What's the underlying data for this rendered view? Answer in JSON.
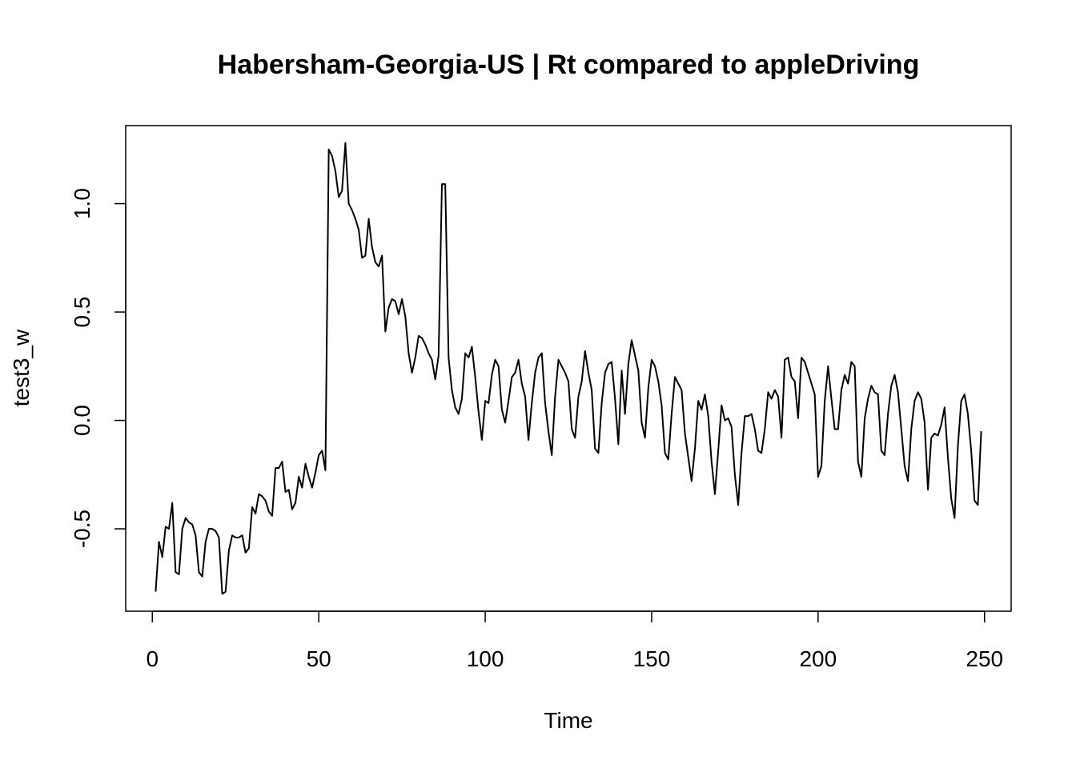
{
  "chart_data": {
    "type": "line",
    "title": "Habersham-Georgia-US | Rt compared to appleDriving",
    "xlabel": "Time",
    "ylabel": "test3_w",
    "xlim": [
      -8,
      258
    ],
    "ylim": [
      -0.88,
      1.36
    ],
    "x_ticks": [
      0,
      50,
      100,
      150,
      200,
      250
    ],
    "x_tick_labels": [
      "0",
      "50",
      "100",
      "150",
      "200",
      "250"
    ],
    "y_ticks": [
      -0.5,
      0.0,
      0.5,
      1.0
    ],
    "y_tick_labels": [
      "-0.5",
      "0.0",
      "0.5",
      "1.0"
    ],
    "grid": false,
    "legend": "none",
    "line_color": "#000000",
    "series": [
      {
        "x_start": 1,
        "values": [
          -0.79,
          -0.56,
          -0.63,
          -0.49,
          -0.5,
          -0.38,
          -0.7,
          -0.71,
          -0.5,
          -0.45,
          -0.47,
          -0.48,
          -0.53,
          -0.7,
          -0.72,
          -0.56,
          -0.5,
          -0.5,
          -0.51,
          -0.54,
          -0.8,
          -0.79,
          -0.6,
          -0.53,
          -0.54,
          -0.54,
          -0.53,
          -0.61,
          -0.59,
          -0.4,
          -0.43,
          -0.34,
          -0.35,
          -0.37,
          -0.42,
          -0.44,
          -0.22,
          -0.22,
          -0.19,
          -0.33,
          -0.32,
          -0.41,
          -0.38,
          -0.26,
          -0.31,
          -0.2,
          -0.26,
          -0.31,
          -0.24,
          -0.16,
          -0.14,
          -0.23,
          1.25,
          1.22,
          1.15,
          1.03,
          1.06,
          1.28,
          1.0,
          0.97,
          0.93,
          0.88,
          0.75,
          0.76,
          0.93,
          0.8,
          0.73,
          0.71,
          0.76,
          0.41,
          0.52,
          0.56,
          0.55,
          0.49,
          0.56,
          0.48,
          0.31,
          0.22,
          0.29,
          0.39,
          0.38,
          0.35,
          0.31,
          0.28,
          0.19,
          0.3,
          1.09,
          1.09,
          0.29,
          0.14,
          0.06,
          0.03,
          0.1,
          0.31,
          0.29,
          0.34,
          0.2,
          0.04,
          -0.09,
          0.09,
          0.08,
          0.21,
          0.28,
          0.25,
          0.05,
          -0.01,
          0.09,
          0.2,
          0.22,
          0.28,
          0.17,
          0.11,
          -0.09,
          0.08,
          0.22,
          0.29,
          0.31,
          0.08,
          -0.05,
          -0.16,
          0.11,
          0.28,
          0.25,
          0.22,
          0.18,
          -0.04,
          -0.08,
          0.11,
          0.18,
          0.32,
          0.22,
          0.14,
          -0.13,
          -0.15,
          0.08,
          0.22,
          0.26,
          0.27,
          0.1,
          -0.11,
          0.23,
          0.03,
          0.26,
          0.37,
          0.3,
          0.23,
          -0.01,
          -0.08,
          0.15,
          0.28,
          0.25,
          0.18,
          0.07,
          -0.15,
          -0.18,
          0.03,
          0.2,
          0.17,
          0.14,
          -0.06,
          -0.17,
          -0.28,
          -0.13,
          0.09,
          0.05,
          0.12,
          0.02,
          -0.19,
          -0.34,
          -0.14,
          0.07,
          0.0,
          0.01,
          -0.03,
          -0.25,
          -0.39,
          -0.15,
          0.02,
          0.02,
          0.03,
          -0.04,
          -0.14,
          -0.15,
          -0.04,
          0.13,
          0.1,
          0.14,
          0.11,
          -0.08,
          0.28,
          0.29,
          0.2,
          0.18,
          0.01,
          0.29,
          0.27,
          0.22,
          0.17,
          0.12,
          -0.26,
          -0.21,
          0.09,
          0.25,
          0.1,
          -0.04,
          -0.04,
          0.14,
          0.21,
          0.17,
          0.27,
          0.25,
          -0.19,
          -0.26,
          0.01,
          0.1,
          0.16,
          0.13,
          0.12,
          -0.14,
          -0.16,
          0.03,
          0.16,
          0.21,
          0.13,
          -0.04,
          -0.21,
          -0.28,
          -0.04,
          0.09,
          0.13,
          0.1,
          -0.01,
          -0.32,
          -0.08,
          -0.06,
          -0.07,
          -0.02,
          0.06,
          -0.17,
          -0.36,
          -0.45,
          -0.12,
          0.09,
          0.12,
          0.03,
          -0.14,
          -0.37,
          -0.39,
          -0.05
        ]
      }
    ]
  }
}
